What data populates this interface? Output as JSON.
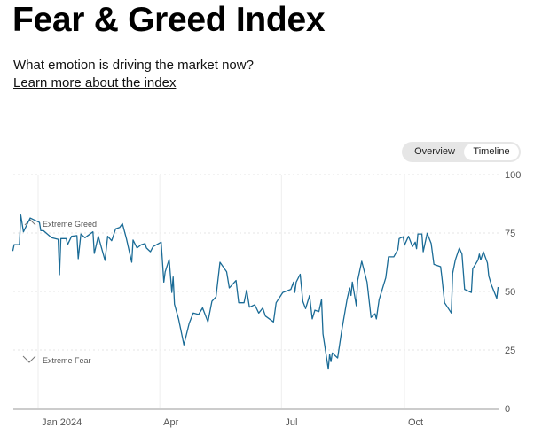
{
  "header": {
    "title": "Fear & Greed Index",
    "subtitle": "What emotion is driving the market now?",
    "link": "Learn more about the index"
  },
  "toggle": {
    "options": [
      "Overview",
      "Timeline"
    ],
    "selected": "Timeline"
  },
  "colors": {
    "line": "#1a6b96",
    "grid": "#e6e6e6",
    "axis": "#cccccc"
  },
  "chart_data": {
    "type": "line",
    "title": "",
    "xlabel": "",
    "ylabel": "",
    "ylim": [
      0,
      100
    ],
    "xlim": [
      "2023-12-13",
      "2024-12-10"
    ],
    "y_ticks": [
      0,
      25,
      50,
      75,
      100
    ],
    "x_ticks": [
      {
        "date": "2024-01-01",
        "label": "Jan 2024"
      },
      {
        "date": "2024-04-01",
        "label": "Apr"
      },
      {
        "date": "2024-07-01",
        "label": "Jul"
      },
      {
        "date": "2024-10-01",
        "label": "Oct"
      }
    ],
    "grid": true,
    "annotations": [
      {
        "label": "Extreme Greed",
        "icon": "chevron-up-icon",
        "value": 75
      },
      {
        "label": "Extreme Fear",
        "icon": "chevron-down-icon",
        "value": 25
      }
    ],
    "series": [
      {
        "points": [
          [
            "2023-12-13",
            67.3
          ],
          [
            "2023-12-14",
            70
          ],
          [
            "2023-12-18",
            70
          ],
          [
            "2023-12-19",
            82.7
          ],
          [
            "2023-12-21",
            75.5
          ],
          [
            "2023-12-26",
            81.4
          ],
          [
            "2024-01-02",
            79.5
          ],
          [
            "2024-01-03",
            76
          ],
          [
            "2024-01-05",
            76
          ],
          [
            "2024-01-11",
            73
          ],
          [
            "2024-01-16",
            72.3
          ],
          [
            "2024-01-17",
            57.2
          ],
          [
            "2024-01-18",
            72.6
          ],
          [
            "2024-01-22",
            72.6
          ],
          [
            "2024-01-23",
            70
          ],
          [
            "2024-01-26",
            73.6
          ],
          [
            "2024-01-30",
            73.9
          ],
          [
            "2024-01-31",
            64
          ],
          [
            "2024-02-02",
            74.6
          ],
          [
            "2024-02-05",
            73
          ],
          [
            "2024-02-11",
            75.5
          ],
          [
            "2024-02-12",
            66.3
          ],
          [
            "2024-02-15",
            73.6
          ],
          [
            "2024-02-20",
            63.3
          ],
          [
            "2024-02-22",
            73.6
          ],
          [
            "2024-02-25",
            71.7
          ],
          [
            "2024-02-28",
            76.8
          ],
          [
            "2024-03-02",
            77.4
          ],
          [
            "2024-03-04",
            79
          ],
          [
            "2024-03-07",
            72.6
          ],
          [
            "2024-03-11",
            62.5
          ],
          [
            "2024-03-12",
            72
          ],
          [
            "2024-03-15",
            68.6
          ],
          [
            "2024-03-18",
            70
          ],
          [
            "2024-03-21",
            70.5
          ],
          [
            "2024-03-22",
            68.6
          ],
          [
            "2024-03-25",
            67
          ],
          [
            "2024-03-27",
            69.2
          ],
          [
            "2024-04-02",
            71.1
          ],
          [
            "2024-04-04",
            54
          ],
          [
            "2024-04-05",
            58.4
          ],
          [
            "2024-04-08",
            63.7
          ],
          [
            "2024-04-10",
            49.6
          ],
          [
            "2024-04-11",
            56.2
          ],
          [
            "2024-04-12",
            44.6
          ],
          [
            "2024-04-15",
            38.3
          ],
          [
            "2024-04-18",
            30
          ],
          [
            "2024-04-19",
            27.2
          ],
          [
            "2024-04-23",
            36.4
          ],
          [
            "2024-04-26",
            40.8
          ],
          [
            "2024-04-30",
            40.2
          ],
          [
            "2024-05-03",
            43
          ],
          [
            "2024-05-07",
            37
          ],
          [
            "2024-05-10",
            45.8
          ],
          [
            "2024-05-13",
            47.7
          ],
          [
            "2024-05-16",
            62.5
          ],
          [
            "2024-05-21",
            58.4
          ],
          [
            "2024-05-23",
            51.5
          ],
          [
            "2024-05-28",
            54.7
          ],
          [
            "2024-05-30",
            45.2
          ],
          [
            "2024-06-03",
            45.2
          ],
          [
            "2024-06-05",
            50.6
          ],
          [
            "2024-06-07",
            43.3
          ],
          [
            "2024-06-11",
            44.3
          ],
          [
            "2024-06-14",
            40.8
          ],
          [
            "2024-06-17",
            42.9
          ],
          [
            "2024-06-19",
            39.5
          ],
          [
            "2024-06-25",
            37
          ],
          [
            "2024-06-27",
            45.2
          ],
          [
            "2024-07-02",
            49.6
          ],
          [
            "2024-07-08",
            50.9
          ],
          [
            "2024-07-10",
            54
          ],
          [
            "2024-07-11",
            49.6
          ],
          [
            "2024-07-12",
            54
          ],
          [
            "2024-07-15",
            57.4
          ],
          [
            "2024-07-17",
            45.8
          ],
          [
            "2024-07-19",
            42.7
          ],
          [
            "2024-07-22",
            48.3
          ],
          [
            "2024-07-24",
            38.3
          ],
          [
            "2024-07-26",
            42
          ],
          [
            "2024-07-29",
            41.4
          ],
          [
            "2024-07-31",
            46.5
          ],
          [
            "2024-08-01",
            31.9
          ],
          [
            "2024-08-05",
            16.8
          ],
          [
            "2024-08-06",
            23.1
          ],
          [
            "2024-08-07",
            20
          ],
          [
            "2024-08-08",
            23.7
          ],
          [
            "2024-08-12",
            21.6
          ],
          [
            "2024-08-15",
            33.2
          ],
          [
            "2024-08-19",
            46.5
          ],
          [
            "2024-08-21",
            51.5
          ],
          [
            "2024-08-22",
            48.3
          ],
          [
            "2024-08-23",
            54
          ],
          [
            "2024-08-26",
            43.9
          ],
          [
            "2024-08-27",
            54.7
          ],
          [
            "2024-08-30",
            62.9
          ],
          [
            "2024-09-03",
            54
          ],
          [
            "2024-09-06",
            38.9
          ],
          [
            "2024-09-09",
            40.5
          ],
          [
            "2024-09-10",
            38.3
          ],
          [
            "2024-09-12",
            46.5
          ],
          [
            "2024-09-17",
            55.9
          ],
          [
            "2024-09-19",
            64.8
          ],
          [
            "2024-09-23",
            64.8
          ],
          [
            "2024-09-26",
            67.9
          ],
          [
            "2024-09-27",
            72.6
          ],
          [
            "2024-09-30",
            73.4
          ],
          [
            "2024-10-01",
            69.8
          ],
          [
            "2024-10-04",
            73.6
          ],
          [
            "2024-10-07",
            69.2
          ],
          [
            "2024-10-09",
            71.1
          ],
          [
            "2024-10-10",
            68.3
          ],
          [
            "2024-10-11",
            74.6
          ],
          [
            "2024-10-14",
            74.6
          ],
          [
            "2024-10-15",
            67
          ],
          [
            "2024-10-18",
            74.9
          ],
          [
            "2024-10-21",
            70.5
          ],
          [
            "2024-10-23",
            61.6
          ],
          [
            "2024-10-28",
            60.6
          ],
          [
            "2024-10-29",
            55.9
          ],
          [
            "2024-10-31",
            45.2
          ],
          [
            "2024-11-05",
            40.8
          ],
          [
            "2024-11-06",
            57.8
          ],
          [
            "2024-11-08",
            63.5
          ],
          [
            "2024-11-11",
            68.6
          ],
          [
            "2024-11-13",
            66
          ],
          [
            "2024-11-15",
            50.9
          ],
          [
            "2024-11-20",
            49.6
          ],
          [
            "2024-11-21",
            59.7
          ],
          [
            "2024-11-25",
            63.5
          ],
          [
            "2024-11-26",
            66
          ],
          [
            "2024-11-27",
            63.5
          ],
          [
            "2024-11-29",
            67
          ],
          [
            "2024-12-02",
            62.2
          ],
          [
            "2024-12-03",
            56.6
          ],
          [
            "2024-12-05",
            52.8
          ],
          [
            "2024-12-09",
            47.1
          ],
          [
            "2024-12-10",
            51.9
          ]
        ]
      }
    ]
  }
}
